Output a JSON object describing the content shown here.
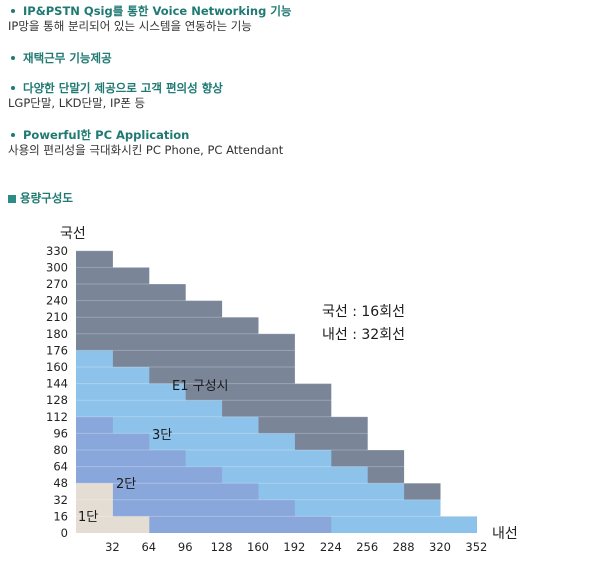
{
  "features": [
    {
      "title": "IP&PSTN Qsig를 통한 Voice Networking 기능",
      "desc": "IP망을 통해 분리되어 있는 시스템을 연동하는 기능"
    },
    {
      "title": "재택근무 기능제공",
      "desc": ""
    },
    {
      "title": "다양한 단말기 제공으로 고객 편의성 향상",
      "desc": "LGP단말, LKD단말, IP폰 등"
    },
    {
      "title": "Powerful한 PC Application",
      "desc": "사용의 편리성을 극대화시킨 PC Phone, PC Attendant"
    }
  ],
  "section": {
    "title": "용량구성도"
  },
  "chart_data": {
    "type": "area",
    "ylabel": "국선",
    "xlabel": "내선",
    "x_ticks": [
      32,
      64,
      96,
      128,
      160,
      192,
      224,
      256,
      288,
      320,
      352
    ],
    "y_ticks": [
      0,
      16,
      32,
      48,
      64,
      80,
      96,
      112,
      128,
      144,
      160,
      176,
      180,
      210,
      240,
      270,
      300,
      330
    ],
    "x_edges": [
      0,
      32,
      64,
      96,
      128,
      160,
      192,
      224,
      256,
      288,
      320,
      352
    ],
    "series": [
      {
        "name": "E1 구성시",
        "color": "#7a8598",
        "values": [
          330,
          300,
          270,
          240,
          210,
          180,
          144,
          112,
          80,
          48,
          16
        ]
      },
      {
        "name": "3단",
        "color": "#8dc3ea",
        "values": [
          176,
          160,
          144,
          128,
          112,
          96,
          80,
          64,
          48,
          32,
          16
        ]
      },
      {
        "name": "2단",
        "color": "#8aa7dc",
        "values": [
          112,
          96,
          80,
          64,
          48,
          32,
          16,
          0,
          0,
          0,
          0
        ]
      },
      {
        "name": "1단",
        "color": "#e3ddd3",
        "values": [
          48,
          16,
          0,
          0,
          0,
          0,
          0,
          0,
          0,
          0,
          0
        ]
      }
    ],
    "annotations": [
      "국선 : 16회선",
      "내선 : 32회선"
    ]
  }
}
